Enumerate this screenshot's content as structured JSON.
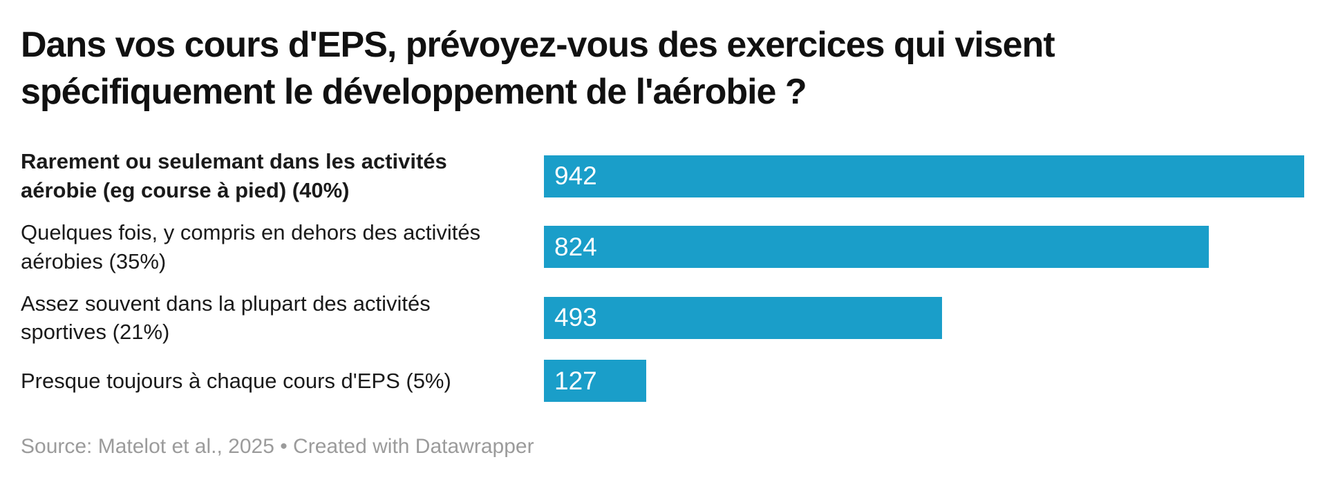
{
  "title": "Dans vos cours d'EPS, prévoyez-vous des exercices qui visent spécifiquement le développement de l'aérobie ?",
  "footer": {
    "text": "Source: Matelot et al., 2025 • Created with Datawrapper"
  },
  "colors": {
    "bar": "#1a9ec9",
    "bar_value_text": "#ffffff",
    "title_text": "#111111",
    "label_text": "#1a1a1a",
    "footer_text": "#9b9b9b",
    "background": "#ffffff"
  },
  "chart_data": {
    "type": "bar",
    "orientation": "horizontal",
    "title": "Dans vos cours d'EPS, prévoyez-vous des exercices qui visent spécifiquement le développement de l'aérobie ?",
    "categories": [
      "Rarement ou seulemant dans les activités aérobie (eg course à pied) (40%)",
      "Quelques fois, y compris en dehors des activités aérobies (35%)",
      "Assez souvent dans la plupart des activités sportives (21%)",
      "Presque toujours à chaque cours d'EPS (5%)"
    ],
    "values": [
      942,
      824,
      493,
      127
    ],
    "value_labels": [
      "942",
      "824",
      "493",
      "127"
    ],
    "percentages": [
      "40%",
      "35%",
      "21%",
      "5%"
    ],
    "emphasized_category_index": 0,
    "xlim": [
      0,
      942
    ],
    "xlabel": "",
    "ylabel": "",
    "grid": false,
    "legend": false,
    "value_label_position": "inside-left",
    "source": "Matelot et al., 2025",
    "credit": "Created with Datawrapper"
  }
}
